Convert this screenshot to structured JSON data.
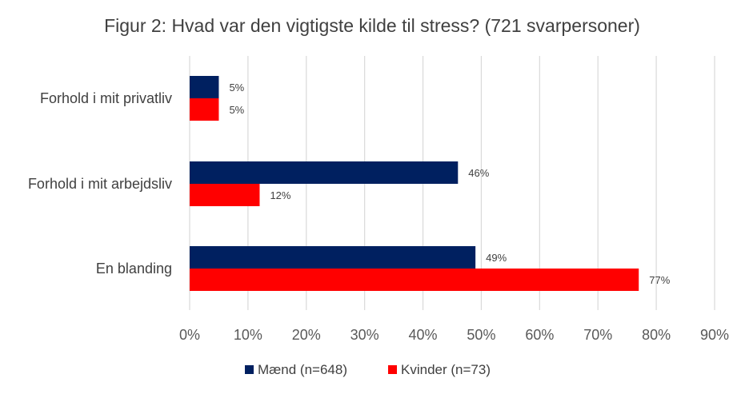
{
  "chart_data": {
    "type": "bar",
    "orientation": "horizontal",
    "title": "Figur 2: Hvad var den vigtigste kilde til stress? (721 svarpersoner)",
    "categories": [
      "Forhold i mit privatliv",
      "Forhold i mit arbejdsliv",
      "En blanding"
    ],
    "series": [
      {
        "name": "Mænd (n=648)",
        "color": "#002060",
        "values": [
          5,
          46,
          49
        ],
        "labels": [
          "5%",
          "46%",
          "49%"
        ]
      },
      {
        "name": "Kvinder (n=73)",
        "color": "#ff0000",
        "values": [
          5,
          12,
          77
        ],
        "labels": [
          "5%",
          "12%",
          "77%"
        ]
      }
    ],
    "xlim": [
      0,
      90
    ],
    "xticks": [
      0,
      10,
      20,
      30,
      40,
      50,
      60,
      70,
      80,
      90
    ],
    "xtick_labels": [
      "0%",
      "10%",
      "20%",
      "30%",
      "40%",
      "50%",
      "60%",
      "70%",
      "80%",
      "90%"
    ],
    "grid": true,
    "legend_position": "bottom"
  }
}
